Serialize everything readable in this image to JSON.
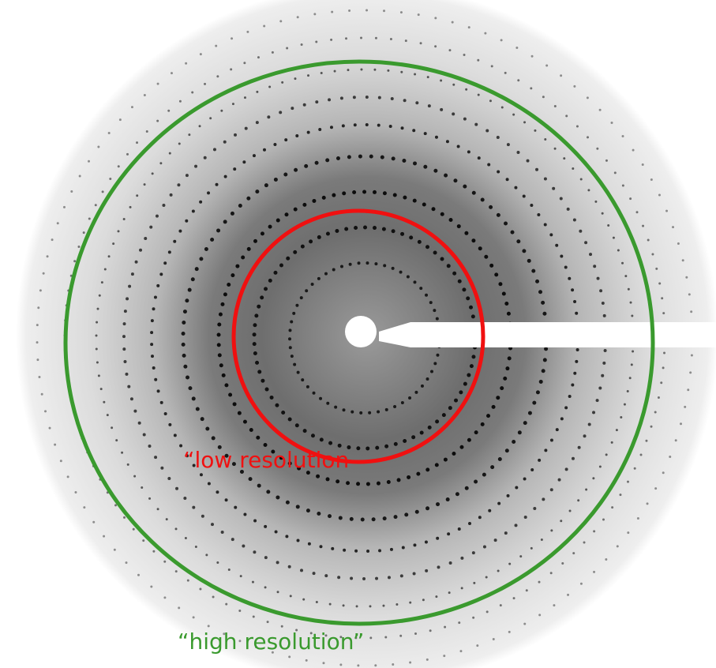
{
  "annotations": {
    "low_resolution": "“low resolution",
    "high_resolution": "“high resolution”"
  }
}
